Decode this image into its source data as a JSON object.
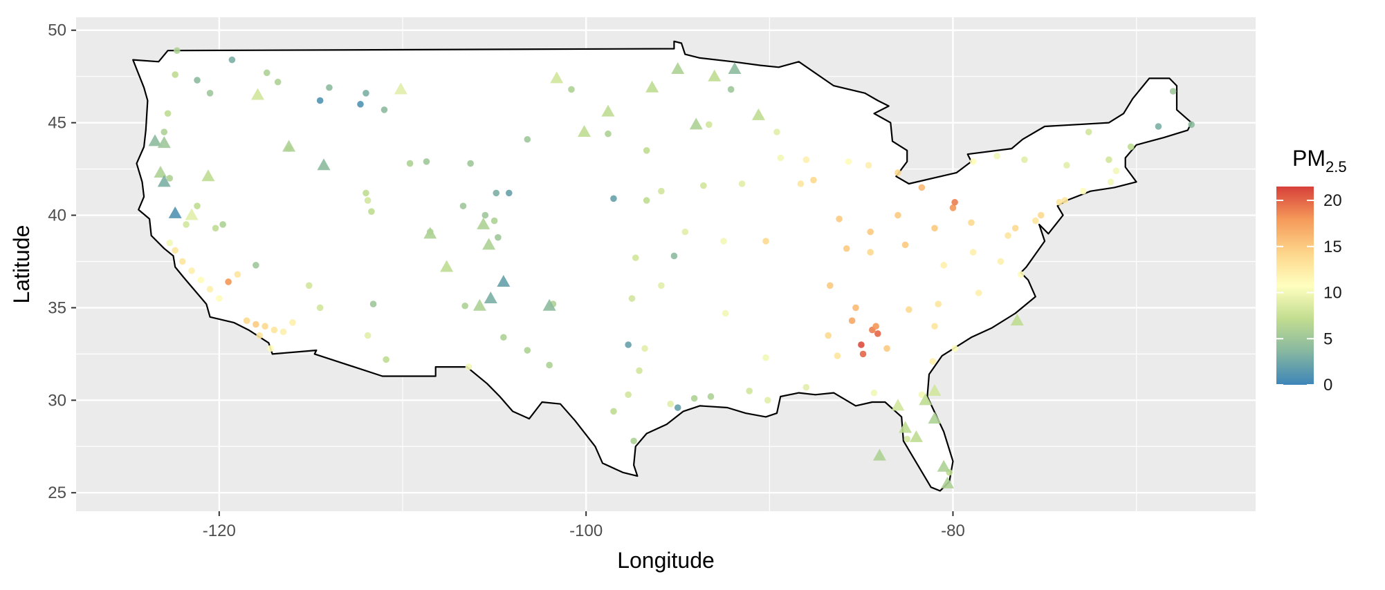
{
  "chart_data": {
    "type": "scatter",
    "title": "",
    "xlabel": "Longitude",
    "ylabel": "Latitude",
    "xlim": [
      -127.8,
      -63.5
    ],
    "ylim": [
      24,
      50.7
    ],
    "x_ticks": [
      -120,
      -100,
      -80
    ],
    "x_tick_labels": [
      "-120",
      "-100",
      "-80"
    ],
    "y_ticks": [
      25,
      30,
      35,
      40,
      45,
      50
    ],
    "y_tick_labels": [
      "25",
      "30",
      "35",
      "40",
      "45",
      "50"
    ],
    "grid": true,
    "background_color": "#ebebeb",
    "grid_color": "#ffffff",
    "map_outline": "contiguous United States (schematic)",
    "legend": {
      "title_main": "PM",
      "title_sub": "2.5",
      "placement": "right",
      "range": [
        0,
        21.5
      ],
      "ticks": [
        0,
        5,
        10,
        15,
        20
      ],
      "tick_labels": [
        "0",
        "5",
        "10",
        "15",
        "20"
      ],
      "palette": [
        "#3d85b9",
        "#86b7a0",
        "#c2dd90",
        "#ffffbf",
        "#fdd58a",
        "#f59a5a",
        "#d7403a"
      ]
    },
    "marker_types": [
      "circle",
      "triangle"
    ],
    "points": [
      [
        -122.4,
        38.1,
        13,
        "c"
      ],
      [
        -122.0,
        37.5,
        13,
        "c"
      ],
      [
        -121.5,
        37.0,
        12,
        "c"
      ],
      [
        -121.0,
        36.5,
        11,
        "c"
      ],
      [
        -120.5,
        36.0,
        12,
        "c"
      ],
      [
        -120.0,
        35.5,
        11,
        "c"
      ],
      [
        -119.5,
        36.4,
        18,
        "c"
      ],
      [
        -119.0,
        36.8,
        13,
        "c"
      ],
      [
        -118.5,
        34.3,
        14,
        "c"
      ],
      [
        -118.0,
        34.1,
        15,
        "c"
      ],
      [
        -117.5,
        34.0,
        14,
        "c"
      ],
      [
        -117.0,
        33.8,
        13,
        "c"
      ],
      [
        -116.5,
        33.7,
        12,
        "c"
      ],
      [
        -117.2,
        32.8,
        11,
        "c"
      ],
      [
        -116.0,
        34.2,
        12,
        "c"
      ],
      [
        -117.8,
        33.5,
        13,
        "c"
      ],
      [
        -122.7,
        38.5,
        10,
        "c"
      ],
      [
        -121.8,
        39.5,
        8,
        "c"
      ],
      [
        -121.2,
        40.5,
        7,
        "c"
      ],
      [
        -120.2,
        39.3,
        7,
        "c"
      ],
      [
        -122.7,
        42.0,
        6,
        "c"
      ],
      [
        -123.0,
        44.5,
        6,
        "c"
      ],
      [
        -122.8,
        45.5,
        7,
        "c"
      ],
      [
        -122.4,
        47.6,
        7,
        "c"
      ],
      [
        -122.3,
        48.9,
        6,
        "c"
      ],
      [
        -121.2,
        47.3,
        4,
        "c"
      ],
      [
        -120.5,
        46.6,
        5,
        "c"
      ],
      [
        -119.3,
        48.4,
        3,
        "c"
      ],
      [
        -117.4,
        47.7,
        6,
        "c"
      ],
      [
        -116.8,
        47.2,
        6,
        "c"
      ],
      [
        -116.2,
        43.6,
        7,
        "c"
      ],
      [
        -114.0,
        46.9,
        4,
        "c"
      ],
      [
        -112.0,
        46.6,
        3,
        "c"
      ],
      [
        -111.0,
        45.7,
        4,
        "c"
      ],
      [
        -114.5,
        46.2,
        1,
        "c"
      ],
      [
        -112.3,
        46.0,
        1,
        "c"
      ],
      [
        -111.9,
        40.8,
        8,
        "c"
      ],
      [
        -111.7,
        40.2,
        7,
        "c"
      ],
      [
        -112.0,
        41.2,
        7,
        "c"
      ],
      [
        -108.5,
        39.1,
        6,
        "c"
      ],
      [
        -106.7,
        40.5,
        5,
        "c"
      ],
      [
        -105.0,
        39.7,
        6,
        "c"
      ],
      [
        -104.8,
        38.8,
        5,
        "c"
      ],
      [
        -105.5,
        40.0,
        5,
        "c"
      ],
      [
        -104.9,
        41.2,
        3,
        "c"
      ],
      [
        -106.3,
        42.8,
        5,
        "c"
      ],
      [
        -108.7,
        42.9,
        5,
        "c"
      ],
      [
        -106.6,
        35.1,
        6,
        "c"
      ],
      [
        -111.9,
        33.5,
        9,
        "c"
      ],
      [
        -110.9,
        32.2,
        7,
        "c"
      ],
      [
        -111.6,
        35.2,
        5,
        "c"
      ],
      [
        -115.1,
        36.2,
        8,
        "c"
      ],
      [
        -114.5,
        35.0,
        8,
        "c"
      ],
      [
        -119.8,
        39.5,
        6,
        "c"
      ],
      [
        -118.0,
        37.3,
        5,
        "c"
      ],
      [
        -106.4,
        31.8,
        10,
        "c"
      ],
      [
        -104.5,
        33.4,
        6,
        "c"
      ],
      [
        -103.2,
        32.7,
        6,
        "c"
      ],
      [
        -101.8,
        35.2,
        6,
        "c"
      ],
      [
        -102.0,
        31.9,
        6,
        "c"
      ],
      [
        -100.8,
        46.8,
        6,
        "c"
      ],
      [
        -98.8,
        44.4,
        6,
        "c"
      ],
      [
        -96.7,
        43.5,
        7,
        "c"
      ],
      [
        -103.2,
        44.1,
        5,
        "c"
      ],
      [
        -97.3,
        37.7,
        8,
        "c"
      ],
      [
        -98.5,
        40.9,
        2,
        "c"
      ],
      [
        -96.7,
        40.8,
        7,
        "c"
      ],
      [
        -95.9,
        41.3,
        8,
        "c"
      ],
      [
        -97.5,
        35.5,
        8,
        "c"
      ],
      [
        -95.9,
        36.2,
        9,
        "c"
      ],
      [
        -94.6,
        39.1,
        9,
        "c"
      ],
      [
        -93.6,
        41.6,
        8,
        "c"
      ],
      [
        -97.7,
        30.3,
        8,
        "c"
      ],
      [
        -98.5,
        29.4,
        7,
        "c"
      ],
      [
        -96.8,
        32.8,
        9,
        "c"
      ],
      [
        -95.4,
        29.8,
        9,
        "c"
      ],
      [
        -97.4,
        27.8,
        6,
        "c"
      ],
      [
        -97.1,
        31.6,
        8,
        "c"
      ],
      [
        -94.1,
        30.1,
        6,
        "c"
      ],
      [
        -95.0,
        29.6,
        2,
        "c"
      ],
      [
        -93.2,
        30.2,
        6,
        "c"
      ],
      [
        -91.1,
        30.5,
        8,
        "c"
      ],
      [
        -90.1,
        30.0,
        9,
        "c"
      ],
      [
        -92.4,
        34.7,
        10,
        "c"
      ],
      [
        -90.2,
        32.3,
        10,
        "c"
      ],
      [
        -88.0,
        30.7,
        9,
        "c"
      ],
      [
        -86.8,
        33.5,
        14,
        "c"
      ],
      [
        -86.3,
        32.4,
        13,
        "c"
      ],
      [
        -85.3,
        35.0,
        16,
        "c"
      ],
      [
        -84.4,
        33.8,
        19,
        "c"
      ],
      [
        -84.1,
        33.6,
        20,
        "c"
      ],
      [
        -83.6,
        32.8,
        15,
        "c"
      ],
      [
        -85.0,
        33.0,
        21,
        "c"
      ],
      [
        -84.9,
        32.5,
        20,
        "c"
      ],
      [
        -84.2,
        34.0,
        18,
        "c"
      ],
      [
        -85.5,
        34.3,
        17,
        "c"
      ],
      [
        -86.7,
        36.2,
        15,
        "c"
      ],
      [
        -85.8,
        38.2,
        15,
        "c"
      ],
      [
        -84.5,
        38.0,
        14,
        "c"
      ],
      [
        -84.5,
        39.1,
        15,
        "c"
      ],
      [
        -83.0,
        40.0,
        15,
        "c"
      ],
      [
        -81.7,
        41.5,
        16,
        "c"
      ],
      [
        -80.0,
        40.4,
        18,
        "c"
      ],
      [
        -79.9,
        40.7,
        19,
        "c"
      ],
      [
        -81.0,
        39.3,
        15,
        "c"
      ],
      [
        -82.6,
        38.4,
        15,
        "c"
      ],
      [
        -80.8,
        35.2,
        13,
        "c"
      ],
      [
        -78.6,
        35.8,
        12,
        "c"
      ],
      [
        -79.9,
        32.8,
        11,
        "c"
      ],
      [
        -81.0,
        34.0,
        13,
        "c"
      ],
      [
        -82.4,
        34.9,
        14,
        "c"
      ],
      [
        -81.1,
        32.1,
        12,
        "c"
      ],
      [
        -81.7,
        30.3,
        10,
        "c"
      ],
      [
        -82.5,
        27.9,
        8,
        "c"
      ],
      [
        -80.2,
        26.1,
        7,
        "c"
      ],
      [
        -84.3,
        30.4,
        10,
        "c"
      ],
      [
        -87.6,
        41.9,
        14,
        "c"
      ],
      [
        -88.0,
        43.0,
        12,
        "c"
      ],
      [
        -89.4,
        43.1,
        10,
        "c"
      ],
      [
        -86.2,
        39.8,
        15,
        "c"
      ],
      [
        -83.0,
        42.3,
        14,
        "c"
      ],
      [
        -85.7,
        42.9,
        11,
        "c"
      ],
      [
        -84.6,
        42.7,
        12,
        "c"
      ],
      [
        -90.2,
        38.6,
        14,
        "c"
      ],
      [
        -93.3,
        44.9,
        8,
        "c"
      ],
      [
        -92.1,
        46.8,
        5,
        "c"
      ],
      [
        -89.6,
        44.5,
        9,
        "c"
      ],
      [
        -88.3,
        41.7,
        13,
        "c"
      ],
      [
        -77.0,
        38.9,
        13,
        "c"
      ],
      [
        -76.6,
        39.3,
        14,
        "c"
      ],
      [
        -75.2,
        40.0,
        14,
        "c"
      ],
      [
        -74.2,
        40.7,
        13,
        "c"
      ],
      [
        -73.9,
        40.8,
        13,
        "c"
      ],
      [
        -72.9,
        41.3,
        11,
        "c"
      ],
      [
        -71.4,
        41.8,
        10,
        "c"
      ],
      [
        -71.1,
        42.4,
        10,
        "c"
      ],
      [
        -76.3,
        36.8,
        11,
        "c"
      ],
      [
        -77.4,
        37.5,
        12,
        "c"
      ],
      [
        -78.9,
        38.0,
        12,
        "c"
      ],
      [
        -73.8,
        42.7,
        9,
        "c"
      ],
      [
        -76.1,
        43.0,
        9,
        "c"
      ],
      [
        -78.9,
        42.9,
        11,
        "c"
      ],
      [
        -77.6,
        43.2,
        10,
        "c"
      ],
      [
        -72.6,
        44.5,
        8,
        "c"
      ],
      [
        -71.5,
        43.0,
        8,
        "c"
      ],
      [
        -70.3,
        43.7,
        7,
        "c"
      ],
      [
        -68.8,
        44.8,
        3,
        "c"
      ],
      [
        -67.0,
        44.9,
        4,
        "c"
      ],
      [
        -68.0,
        46.7,
        5,
        "c"
      ],
      [
        -75.5,
        39.7,
        13,
        "c"
      ],
      [
        -79.0,
        39.6,
        14,
        "c"
      ],
      [
        -80.5,
        37.3,
        12,
        "c"
      ],
      [
        -91.5,
        41.7,
        9,
        "c"
      ],
      [
        -92.5,
        38.6,
        10,
        "c"
      ],
      [
        -95.2,
        37.8,
        4,
        "c"
      ],
      [
        -97.7,
        33.0,
        2,
        "c"
      ],
      [
        -104.2,
        41.2,
        2,
        "c"
      ],
      [
        -109.6,
        42.8,
        6,
        "c"
      ],
      [
        -123.5,
        44.0,
        4,
        "t"
      ],
      [
        -123.0,
        43.9,
        5,
        "t"
      ],
      [
        -123.2,
        42.3,
        6,
        "t"
      ],
      [
        -123.0,
        41.8,
        3,
        "t"
      ],
      [
        -122.4,
        40.1,
        1,
        "t"
      ],
      [
        -121.5,
        40.0,
        9,
        "t"
      ],
      [
        -120.6,
        42.1,
        7,
        "t"
      ],
      [
        -116.2,
        43.7,
        6,
        "t"
      ],
      [
        -114.3,
        42.7,
        4,
        "t"
      ],
      [
        -108.5,
        39.0,
        6,
        "t"
      ],
      [
        -107.6,
        37.2,
        7,
        "t"
      ],
      [
        -105.8,
        35.1,
        6,
        "t"
      ],
      [
        -105.2,
        35.5,
        3,
        "t"
      ],
      [
        -104.5,
        36.4,
        2,
        "t"
      ],
      [
        -102.0,
        35.1,
        4,
        "t"
      ],
      [
        -105.3,
        38.4,
        6,
        "t"
      ],
      [
        -105.6,
        39.5,
        6,
        "t"
      ],
      [
        -100.1,
        44.5,
        7,
        "t"
      ],
      [
        -98.8,
        45.6,
        7,
        "t"
      ],
      [
        -96.4,
        46.9,
        7,
        "t"
      ],
      [
        -95.0,
        47.9,
        6,
        "t"
      ],
      [
        -93.0,
        47.5,
        7,
        "t"
      ],
      [
        -91.9,
        47.9,
        4,
        "t"
      ],
      [
        -90.6,
        45.4,
        7,
        "t"
      ],
      [
        -94.0,
        44.9,
        6,
        "t"
      ],
      [
        -84.0,
        27.0,
        6,
        "t"
      ],
      [
        -82.0,
        28.0,
        7,
        "t"
      ],
      [
        -81.0,
        29.0,
        6,
        "t"
      ],
      [
        -80.5,
        26.4,
        6,
        "t"
      ],
      [
        -80.3,
        25.5,
        6,
        "t"
      ],
      [
        -82.6,
        28.5,
        7,
        "t"
      ],
      [
        -81.5,
        30.0,
        7,
        "t"
      ],
      [
        -83.0,
        29.7,
        8,
        "t"
      ],
      [
        -81.0,
        30.5,
        8,
        "t"
      ],
      [
        -76.5,
        34.3,
        7,
        "t"
      ],
      [
        -101.6,
        47.4,
        8,
        "t"
      ],
      [
        -110.1,
        46.8,
        9,
        "t"
      ],
      [
        -117.9,
        46.5,
        8,
        "t"
      ]
    ]
  }
}
